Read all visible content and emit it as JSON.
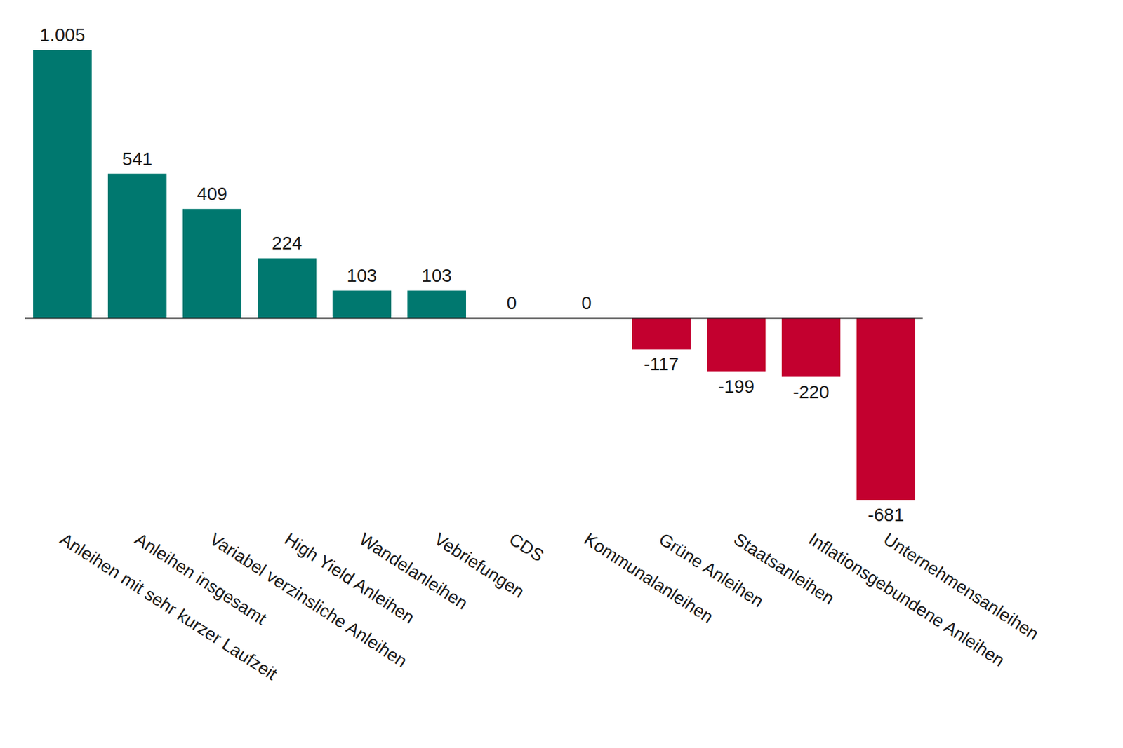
{
  "chart_data": {
    "type": "bar",
    "categories": [
      "Anleihen mit sehr kurzer Laufzeit",
      "Anleihen insgesamt",
      "Variabel verzinsliche Anleihen",
      "High Yield Anleihen",
      "Wandelanleihen",
      "Vebriefungen",
      "CDS",
      "Kommunalanleihen",
      "Grüne Anleihen",
      "Staatsanleihen",
      "Inflationsgebundene Anleihen",
      "Unternehmensanleihen"
    ],
    "values": [
      1005,
      541,
      409,
      224,
      103,
      103,
      0,
      0,
      -117,
      -199,
      -220,
      -681
    ],
    "value_labels": [
      "1.005",
      "541",
      "409",
      "224",
      "103",
      "103",
      "0",
      "0",
      "-117",
      "-199",
      "-220",
      "-681"
    ],
    "colors": [
      "#00786f",
      "#00786f",
      "#00786f",
      "#00786f",
      "#00786f",
      "#00786f",
      "#00786f",
      "#00786f",
      "#c3002f",
      "#c3002f",
      "#c3002f",
      "#c3002f"
    ],
    "ylim": [
      -681,
      1005
    ],
    "data_labels": true,
    "tick_labels": "x",
    "grid": false
  }
}
